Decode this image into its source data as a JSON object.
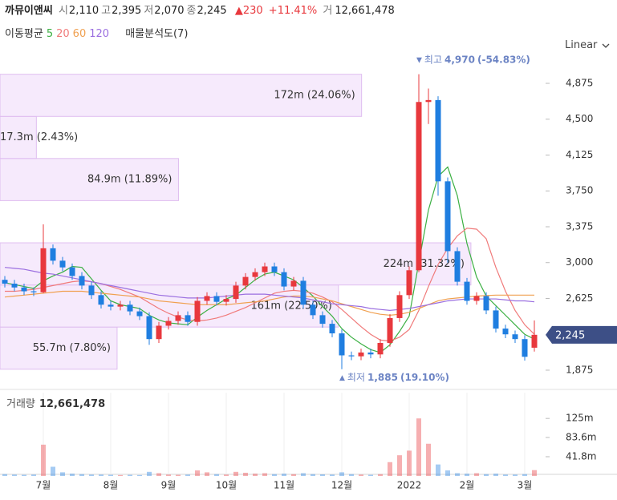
{
  "header": {
    "name": "까뮤이앤씨",
    "fields": [
      {
        "label": "시",
        "value": "2,110"
      },
      {
        "label": "고",
        "value": "2,395"
      },
      {
        "label": "저",
        "value": "2,070"
      },
      {
        "label": "종",
        "value": "2,245"
      }
    ],
    "change": "▲230",
    "change_pct": "+11.41%",
    "volume_label": "거",
    "volume": "12,661,478"
  },
  "indicators": {
    "label": "이동평균",
    "profile": "매물분석도(7)",
    "scale": "Linear"
  },
  "chart_data": {
    "type": "candlestick",
    "categories": [
      null,
      null,
      null,
      null,
      "7월",
      null,
      null,
      null,
      null,
      null,
      null,
      "8월",
      null,
      null,
      null,
      null,
      null,
      "9월",
      null,
      null,
      null,
      null,
      null,
      "10월",
      null,
      null,
      null,
      null,
      null,
      "11월",
      null,
      null,
      null,
      null,
      null,
      "12월",
      null,
      null,
      null,
      null,
      null,
      null,
      "2022",
      null,
      null,
      null,
      null,
      null,
      "2월",
      null,
      null,
      null,
      null,
      null,
      "3월",
      null
    ],
    "open": [
      2820,
      2780,
      2740,
      2700,
      2690,
      3150,
      3020,
      2950,
      2860,
      2760,
      2660,
      2560,
      2540,
      2560,
      2490,
      2440,
      2200,
      2340,
      2390,
      2450,
      2380,
      2600,
      2650,
      2590,
      2620,
      2760,
      2850,
      2900,
      2960,
      2900,
      2750,
      2810,
      2560,
      2450,
      2360,
      2260,
      2030,
      2020,
      2060,
      2040,
      2160,
      2420,
      2660,
      2920,
      4680,
      4700,
      3850,
      3120,
      2800,
      2600,
      2650,
      2500,
      2310,
      2250,
      2200,
      2110
    ],
    "high": [
      2860,
      2820,
      2780,
      2740,
      3400,
      3190,
      3060,
      2990,
      2900,
      2800,
      2700,
      2600,
      2600,
      2600,
      2530,
      2480,
      2380,
      2430,
      2490,
      2490,
      2640,
      2690,
      2690,
      2660,
      2800,
      2890,
      2940,
      3000,
      3000,
      2940,
      2850,
      2850,
      2600,
      2490,
      2400,
      2300,
      2070,
      2100,
      2100,
      2200,
      2460,
      2700,
      2960,
      4970,
      4820,
      4740,
      3890,
      3160,
      2840,
      2690,
      2690,
      2540,
      2350,
      2290,
      2240,
      2395
    ],
    "low": [
      2740,
      2700,
      2660,
      2650,
      2680,
      2980,
      2910,
      2820,
      2720,
      2620,
      2520,
      2500,
      2500,
      2450,
      2400,
      2140,
      2160,
      2300,
      2350,
      2340,
      2340,
      2560,
      2550,
      2550,
      2580,
      2720,
      2810,
      2860,
      2860,
      2710,
      2710,
      2520,
      2410,
      2320,
      2220,
      1885,
      1980,
      1980,
      2000,
      2000,
      2120,
      2380,
      2620,
      2900,
      4450,
      3700,
      3000,
      2760,
      2560,
      2560,
      2460,
      2270,
      2210,
      2160,
      1975,
      2070
    ],
    "close": [
      2780,
      2740,
      2700,
      2690,
      3150,
      3020,
      2950,
      2860,
      2760,
      2660,
      2560,
      2540,
      2560,
      2490,
      2440,
      2200,
      2340,
      2390,
      2450,
      2380,
      2600,
      2650,
      2590,
      2620,
      2760,
      2850,
      2900,
      2960,
      2900,
      2750,
      2810,
      2560,
      2450,
      2360,
      2260,
      2030,
      2020,
      2060,
      2040,
      2160,
      2420,
      2660,
      2920,
      4680,
      4700,
      3850,
      3120,
      2800,
      2600,
      2650,
      2500,
      2310,
      2250,
      2200,
      2015,
      2245
    ],
    "up_color": "#e8383d",
    "down_color": "#1f7ee0",
    "ylim": [
      1724,
      5118
    ],
    "yticks": [
      {
        "value": 1875,
        "label": "1,875"
      },
      {
        "value": 2625,
        "label": "2,625"
      },
      {
        "value": 3000,
        "label": "3,000"
      },
      {
        "value": 3375,
        "label": "3,375"
      },
      {
        "value": 3750,
        "label": "3,750"
      },
      {
        "value": 4125,
        "label": "4,125"
      },
      {
        "value": 4500,
        "label": "4,500"
      },
      {
        "value": 4875,
        "label": "4,875"
      }
    ],
    "last_price": {
      "value": 2245,
      "label": "2,245",
      "color": "#3d4f86"
    },
    "series": [
      {
        "name": "5",
        "color": "#3cb043",
        "values": [
          2790,
          2770,
          2750,
          2730,
          2810,
          2860,
          2900,
          2960,
          2950,
          2830,
          2710,
          2600,
          2560,
          2540,
          2520,
          2450,
          2400,
          2370,
          2360,
          2350,
          2430,
          2500,
          2560,
          2620,
          2660,
          2740,
          2820,
          2880,
          2900,
          2860,
          2820,
          2740,
          2650,
          2540,
          2440,
          2310,
          2220,
          2150,
          2090,
          2060,
          2140,
          2280,
          2440,
          3000,
          3550,
          3900,
          4000,
          3700,
          3200,
          2850,
          2650,
          2550,
          2450,
          2350,
          2250,
          2200
        ]
      },
      {
        "name": "20",
        "color": "#f07a7a",
        "values": [
          2700,
          2700,
          2710,
          2720,
          2740,
          2760,
          2780,
          2800,
          2810,
          2800,
          2780,
          2750,
          2720,
          2680,
          2640,
          2580,
          2520,
          2470,
          2430,
          2400,
          2390,
          2400,
          2420,
          2450,
          2490,
          2530,
          2580,
          2630,
          2680,
          2700,
          2710,
          2700,
          2680,
          2640,
          2590,
          2510,
          2420,
          2330,
          2250,
          2190,
          2180,
          2220,
          2300,
          2500,
          2750,
          2980,
          3150,
          3280,
          3360,
          3350,
          3250,
          2950,
          2700,
          2500,
          2350,
          2250
        ]
      },
      {
        "name": "60",
        "color": "#f0a050",
        "values": [
          2640,
          2650,
          2660,
          2670,
          2680,
          2690,
          2700,
          2700,
          2700,
          2690,
          2680,
          2670,
          2660,
          2650,
          2640,
          2620,
          2600,
          2590,
          2580,
          2570,
          2560,
          2560,
          2560,
          2560,
          2570,
          2580,
          2590,
          2600,
          2620,
          2640,
          2650,
          2650,
          2640,
          2620,
          2600,
          2570,
          2540,
          2510,
          2480,
          2460,
          2450,
          2460,
          2480,
          2520,
          2560,
          2600,
          2620,
          2630,
          2640,
          2650,
          2655,
          2660,
          2660,
          2660,
          2660,
          2660
        ]
      },
      {
        "name": "120",
        "color": "#9b6fe0",
        "values": [
          2950,
          2940,
          2930,
          2910,
          2890,
          2880,
          2860,
          2840,
          2820,
          2800,
          2780,
          2760,
          2740,
          2720,
          2700,
          2680,
          2660,
          2650,
          2640,
          2630,
          2630,
          2630,
          2640,
          2650,
          2660,
          2670,
          2670,
          2670,
          2660,
          2650,
          2640,
          2630,
          2610,
          2590,
          2570,
          2560,
          2550,
          2540,
          2520,
          2510,
          2500,
          2510,
          2520,
          2540,
          2560,
          2580,
          2600,
          2610,
          2620,
          2620,
          2620,
          2620,
          2610,
          2600,
          2600,
          2590
        ]
      }
    ],
    "volume_profile": {
      "bins": [
        1885,
        2326,
        2766,
        3207,
        3648,
        4089,
        4529,
        4970
      ],
      "values": [
        55700000,
        161000000,
        224000000,
        0,
        84900000,
        17300000,
        172000000
      ],
      "value_labels": [
        "55.7m (7.80%)",
        "161m (22.50%)",
        "224m (31.32%)",
        null,
        "84.9m (11.89%)",
        "17.3m (2.43%)",
        "172m (24.06%)"
      ],
      "xlim": [
        0,
        258000000
      ],
      "color": "#f5e6fb",
      "edge_color": "#dfbdf0"
    },
    "annotations": [
      {
        "marker": "▼",
        "text": "최고",
        "value": 4970,
        "label": "4,970",
        "change": "(-54.83%)",
        "color": "#6c84c4"
      },
      {
        "marker": "▲",
        "text": "최저",
        "value": 1885,
        "label": "1,885",
        "change": "(19.10%)",
        "color": "#6c84c4"
      }
    ],
    "volume": {
      "title": "거래량",
      "total_label": "12,661,478",
      "values": [
        4000000,
        3000000,
        2500000,
        3000000,
        68000000,
        20000000,
        8000000,
        5000000,
        4000000,
        3000000,
        3000000,
        2500000,
        2000000,
        2500000,
        2000000,
        9000000,
        6000000,
        3000000,
        2500000,
        3000000,
        12000000,
        8000000,
        4000000,
        3000000,
        9000000,
        7000000,
        5000000,
        6000000,
        4000000,
        5000000,
        4000000,
        6000000,
        4000000,
        3500000,
        3000000,
        8000000,
        4000000,
        3000000,
        2500000,
        4000000,
        30000000,
        45000000,
        55000000,
        125000000,
        70000000,
        25000000,
        12000000,
        6000000,
        5000000,
        6000000,
        4000000,
        5000000,
        3000000,
        3000000,
        4000000,
        12661478
      ],
      "ylim": [
        0,
        181000000
      ],
      "yticks": [
        {
          "value": 41800000,
          "label": "41.8m"
        },
        {
          "value": 83600000,
          "label": "83.6m"
        },
        {
          "value": 125000000,
          "label": "125m"
        }
      ]
    }
  }
}
